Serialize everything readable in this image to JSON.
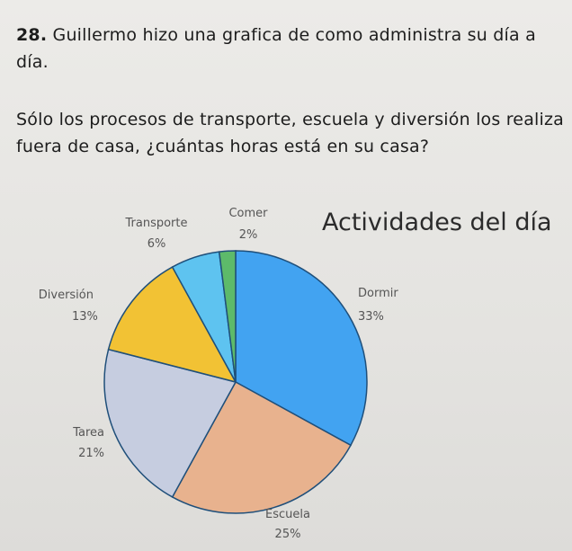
{
  "question": {
    "number": "28.",
    "line1": "Guillermo hizo una grafica de como administra su día a día.",
    "line2": "Sólo los procesos de transporte, escuela y diversión los realiza fuera de casa, ¿cuántas horas está en su casa?"
  },
  "chart_data": {
    "type": "pie",
    "title": "Actividades del día",
    "slices": [
      {
        "label": "Dormir",
        "value": 33,
        "value_label": "33%",
        "color": "#42a3f1"
      },
      {
        "label": "Escuela",
        "value": 25,
        "value_label": "25%",
        "color": "#e8b28e"
      },
      {
        "label": "Tarea",
        "value": 21,
        "value_label": "21%",
        "color": "#c6cde0"
      },
      {
        "label": "Diversión",
        "value": 13,
        "value_label": "13%",
        "color": "#f2c234"
      },
      {
        "label": "Transporte",
        "value": 6,
        "value_label": "6%",
        "color": "#5ec3f0"
      },
      {
        "label": "Comer",
        "value": 2,
        "value_label": "2%",
        "color": "#5dba6a"
      }
    ],
    "legend": "none"
  }
}
